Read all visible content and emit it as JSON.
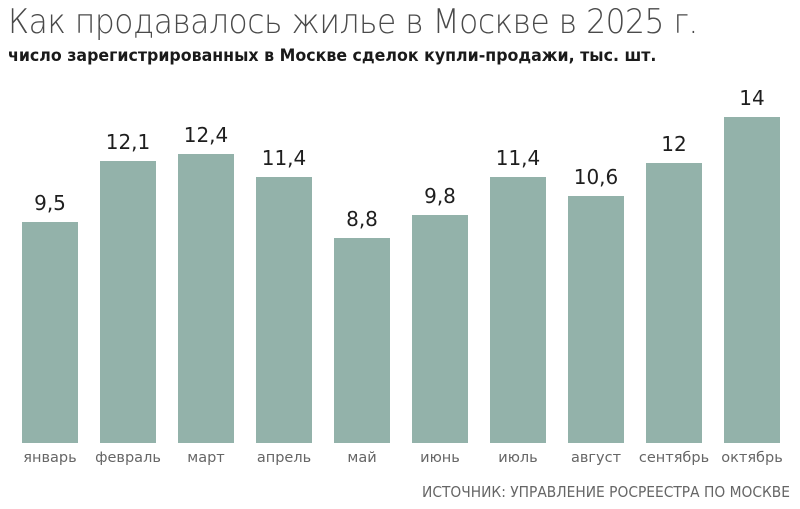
{
  "header": {
    "title": "Как продавалось жилье в Москве в 2025 г.",
    "subtitle": "число зарегистрированных в Москве сделок купли-продажи, тыс. шт."
  },
  "footer": {
    "source": "ИСТОЧНИК: УПРАВЛЕНИЕ РОСРЕЕСТРА ПО МОСКВЕ"
  },
  "colors": {
    "bar": "#93b2aa",
    "title": "#4a4a4a",
    "label": "#666666"
  },
  "chart_data": {
    "type": "bar",
    "title": "Как продавалось жилье в Москве в 2025 г.",
    "subtitle": "число зарегистрированных в Москве сделок купли-продажи, тыс. шт.",
    "xlabel": "",
    "ylabel": "",
    "categories": [
      "январь",
      "февраль",
      "март",
      "апрель",
      "май",
      "июнь",
      "июль",
      "август",
      "сентябрь",
      "октябрь"
    ],
    "values": [
      9.5,
      12.1,
      12.4,
      11.4,
      8.8,
      9.8,
      11.4,
      10.6,
      12,
      14
    ],
    "value_labels": [
      "9,5",
      "12,1",
      "12,4",
      "11,4",
      "8,8",
      "9,8",
      "11,4",
      "10,6",
      "12",
      "14"
    ],
    "ylim": [
      0,
      14
    ],
    "grid": false,
    "legend": null,
    "source": "ИСТОЧНИК: УПРАВЛЕНИЕ РОСРЕЕСТРА ПО МОСКВЕ"
  }
}
